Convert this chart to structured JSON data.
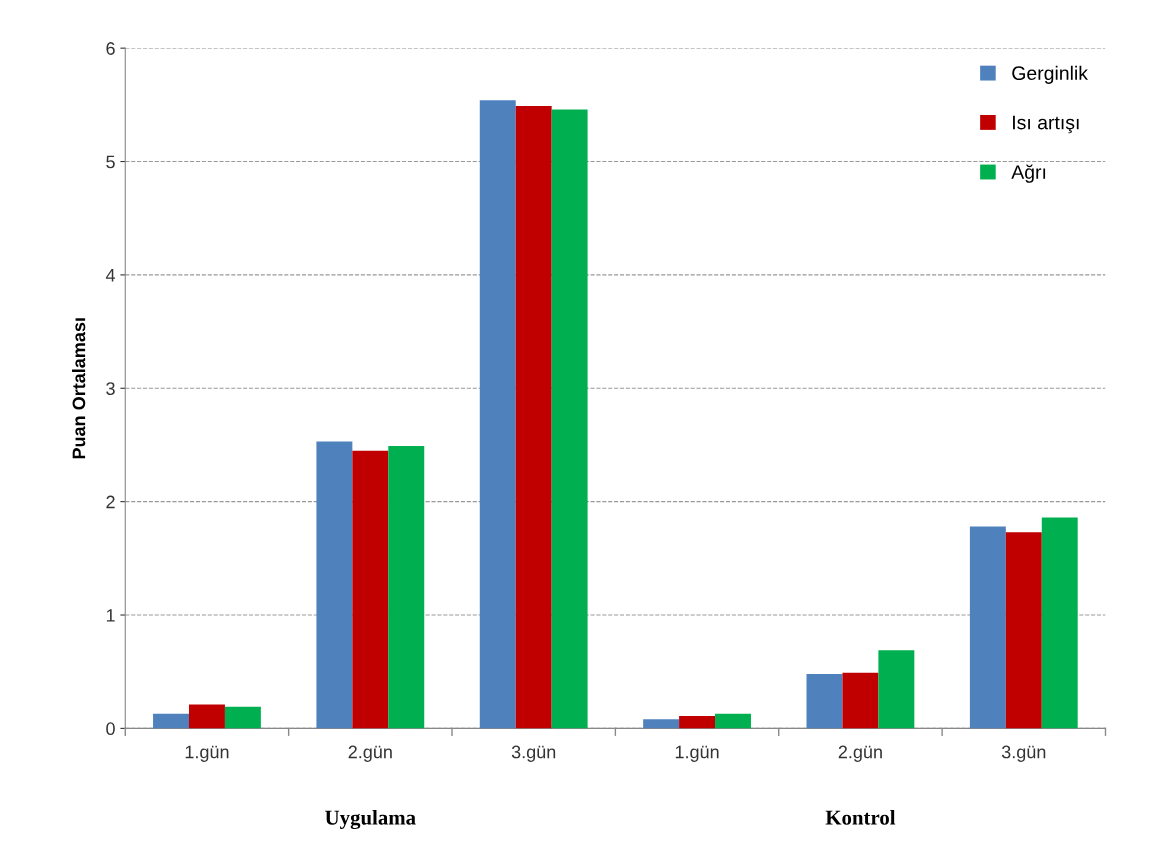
{
  "chart_data": {
    "type": "bar",
    "ylabel": "Puan Ortalaması",
    "categories": [
      "1.gün",
      "2.gün",
      "3.gün",
      "1.gün",
      "2.gün",
      "3.gün"
    ],
    "series": [
      {
        "name": "Gerginlik",
        "color": "#4f81bd",
        "values": [
          0.13,
          2.53,
          5.54,
          0.08,
          0.48,
          1.78
        ]
      },
      {
        "name": "Isı artışı",
        "color": "#c00000",
        "values": [
          0.21,
          2.45,
          5.49,
          0.11,
          0.49,
          1.73
        ]
      },
      {
        "name": "Ağrı",
        "color": "#00b050",
        "values": [
          0.19,
          2.49,
          5.46,
          0.13,
          0.69,
          1.86
        ]
      }
    ],
    "ylim": [
      0,
      6
    ],
    "yticks": [
      0,
      1,
      2,
      3,
      4,
      5,
      6
    ],
    "grid": "y",
    "legend": "top right",
    "annotations": [
      "Uygulama",
      "Kontrol"
    ]
  }
}
